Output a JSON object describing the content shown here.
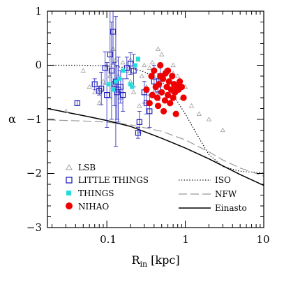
{
  "chart_data": {
    "type": "scatter",
    "xlabel": "R",
    "xlabel_sub": "in",
    "xlabel_unit": " [kpc]",
    "ylabel": "α",
    "x_scale": "log",
    "xlim": [
      0.0175,
      10
    ],
    "ylim": [
      -3,
      1
    ],
    "x_tick_labels": [
      "0.1",
      "1",
      "10"
    ],
    "y_tick_labels": [
      "1",
      "0",
      "−1",
      "−2",
      "−3"
    ],
    "colors": {
      "lsb": "#a0a0a0",
      "little_things": "#2222bb",
      "things": "#22dddd",
      "nihao": "#ee0000",
      "curve": "#000000",
      "nfw": "#999999"
    },
    "legend": [
      {
        "label": "LSB",
        "kind": "lsb"
      },
      {
        "label": "LITTLE THINGS",
        "kind": "little_things"
      },
      {
        "label": "THINGS",
        "kind": "things"
      },
      {
        "label": "NIHAO",
        "kind": "nihao"
      },
      {
        "label": "ISO",
        "kind": "iso"
      },
      {
        "label": "NFW",
        "kind": "nfw"
      },
      {
        "label": "Einasto",
        "kind": "einasto"
      }
    ],
    "series": [
      {
        "name": "LSB",
        "marker": "triangle",
        "points": [
          [
            0.03,
            -0.85
          ],
          [
            0.05,
            -0.1
          ],
          [
            0.06,
            -0.4
          ],
          [
            0.07,
            -0.5
          ],
          [
            0.08,
            -0.7
          ],
          [
            0.09,
            -0.3
          ],
          [
            0.1,
            0.0
          ],
          [
            0.11,
            -0.2
          ],
          [
            0.12,
            -0.4
          ],
          [
            0.13,
            0.1
          ],
          [
            0.14,
            -0.2
          ],
          [
            0.15,
            -0.6
          ],
          [
            0.16,
            0.05
          ],
          [
            0.18,
            -0.1
          ],
          [
            0.2,
            -0.3
          ],
          [
            0.22,
            -0.5
          ],
          [
            0.25,
            0.1
          ],
          [
            0.28,
            -0.2
          ],
          [
            0.3,
            0.0
          ],
          [
            0.32,
            -0.4
          ],
          [
            0.35,
            -0.7
          ],
          [
            0.38,
            0.05
          ],
          [
            0.4,
            -0.2
          ],
          [
            0.45,
            -0.5
          ],
          [
            0.5,
            0.2
          ],
          [
            0.55,
            -0.1
          ],
          [
            0.6,
            -0.35
          ],
          [
            0.65,
            -0.7
          ],
          [
            0.7,
            0.0
          ],
          [
            0.8,
            -0.2
          ],
          [
            0.9,
            -0.6
          ],
          [
            1.0,
            -0.4
          ],
          [
            1.2,
            -0.75
          ],
          [
            1.5,
            -0.9
          ],
          [
            2.0,
            -1.0
          ],
          [
            3.0,
            -1.2
          ],
          [
            0.12,
            0.3
          ],
          [
            0.2,
            0.1
          ],
          [
            0.45,
            0.3
          ],
          [
            0.35,
            -0.05
          ],
          [
            0.7,
            -0.15
          ],
          [
            0.26,
            -0.75
          ]
        ]
      },
      {
        "name": "LITTLE THINGS",
        "marker": "open-square",
        "points": [
          [
            0.042,
            -0.7,
            0.05,
            0.05
          ],
          [
            0.07,
            -0.35,
            0.1,
            0.1
          ],
          [
            0.08,
            -0.47,
            0.08,
            0.08
          ],
          [
            0.085,
            -0.43,
            0.3,
            0.3
          ],
          [
            0.095,
            -0.05,
            0.3,
            0.3
          ],
          [
            0.1,
            -0.55,
            0.6,
            0.6
          ],
          [
            0.11,
            0.2,
            0.8,
            0.8
          ],
          [
            0.115,
            -0.1,
            0.9,
            0.9
          ],
          [
            0.12,
            0.62,
            0.6,
            0.6
          ],
          [
            0.125,
            -0.35,
            0.4,
            0.4
          ],
          [
            0.13,
            -0.3,
            1.2,
            1.2
          ],
          [
            0.135,
            -0.5,
            0.5,
            0.5
          ],
          [
            0.14,
            -0.45,
            0.6,
            0.6
          ],
          [
            0.15,
            -0.4,
            0.3,
            0.3
          ],
          [
            0.16,
            -0.55,
            0.3,
            0.3
          ],
          [
            0.18,
            -0.05,
            0.2,
            0.2
          ],
          [
            0.2,
            0.03,
            0.2,
            0.2
          ],
          [
            0.22,
            -0.1,
            0.3,
            0.3
          ],
          [
            0.25,
            -1.25,
            0.1,
            0.1
          ],
          [
            0.26,
            -1.05,
            0.2,
            0.2
          ],
          [
            0.3,
            -0.5,
            0.2,
            0.2
          ],
          [
            0.32,
            -0.7,
            0.2,
            0.2
          ],
          [
            0.35,
            -0.85,
            0.3,
            0.3
          ],
          [
            0.4,
            -0.3,
            0.3,
            0.3
          ],
          [
            0.45,
            -0.45,
            0.2,
            0.2
          ],
          [
            0.48,
            -0.2,
            0.2,
            0.2
          ]
        ]
      },
      {
        "name": "THINGS",
        "marker": "filled-square",
        "points": [
          [
            0.105,
            -0.35
          ],
          [
            0.13,
            -0.3
          ],
          [
            0.145,
            -0.25
          ],
          [
            0.16,
            -0.1
          ],
          [
            0.2,
            -0.35
          ],
          [
            0.21,
            -0.4
          ],
          [
            0.23,
            0.0
          ],
          [
            0.25,
            0.12
          ],
          [
            0.12,
            -0.45
          ]
        ]
      },
      {
        "name": "NIHAO",
        "marker": "filled-circle",
        "points": [
          [
            0.32,
            -0.45
          ],
          [
            0.35,
            -0.7
          ],
          [
            0.37,
            -0.2
          ],
          [
            0.4,
            -0.1
          ],
          [
            0.42,
            -0.4
          ],
          [
            0.44,
            -0.6
          ],
          [
            0.46,
            -0.35
          ],
          [
            0.48,
            0.0
          ],
          [
            0.5,
            -0.5
          ],
          [
            0.52,
            -0.25
          ],
          [
            0.55,
            -0.65
          ],
          [
            0.56,
            -0.15
          ],
          [
            0.58,
            -0.4
          ],
          [
            0.6,
            -0.55
          ],
          [
            0.62,
            -0.3
          ],
          [
            0.64,
            -0.7
          ],
          [
            0.66,
            -0.45
          ],
          [
            0.68,
            -0.2
          ],
          [
            0.7,
            -0.6
          ],
          [
            0.72,
            -0.35
          ],
          [
            0.74,
            -0.5
          ],
          [
            0.76,
            -0.9
          ],
          [
            0.78,
            -0.4
          ],
          [
            0.82,
            -0.45
          ],
          [
            0.85,
            -0.3
          ],
          [
            0.9,
            -0.4
          ],
          [
            0.95,
            -0.6
          ],
          [
            0.45,
            -0.75
          ],
          [
            0.38,
            -0.55
          ],
          [
            0.53,
            -0.85
          ],
          [
            0.6,
            -0.1
          ],
          [
            0.48,
            -0.2
          ]
        ]
      }
    ],
    "curves": [
      {
        "name": "ISO",
        "style": "dotted",
        "points": [
          [
            0.0175,
            0.0
          ],
          [
            0.05,
            0.0
          ],
          [
            0.1,
            -0.01
          ],
          [
            0.2,
            -0.05
          ],
          [
            0.3,
            -0.12
          ],
          [
            0.5,
            -0.3
          ],
          [
            0.7,
            -0.55
          ],
          [
            1.0,
            -0.9
          ],
          [
            1.5,
            -1.35
          ],
          [
            2.0,
            -1.65
          ],
          [
            3.0,
            -1.87
          ],
          [
            5.0,
            -1.96
          ],
          [
            10.0,
            -1.99
          ]
        ]
      },
      {
        "name": "NFW",
        "style": "dashed",
        "points": [
          [
            0.0175,
            -1.01
          ],
          [
            0.05,
            -1.03
          ],
          [
            0.1,
            -1.05
          ],
          [
            0.2,
            -1.1
          ],
          [
            0.5,
            -1.22
          ],
          [
            1.0,
            -1.38
          ],
          [
            2.0,
            -1.6
          ],
          [
            3.0,
            -1.75
          ],
          [
            5.0,
            -1.9
          ],
          [
            7.0,
            -1.97
          ],
          [
            10.0,
            -2.05
          ]
        ]
      },
      {
        "name": "Einasto",
        "style": "solid",
        "points": [
          [
            0.0175,
            -0.8
          ],
          [
            0.05,
            -0.93
          ],
          [
            0.1,
            -1.02
          ],
          [
            0.2,
            -1.13
          ],
          [
            0.5,
            -1.35
          ],
          [
            1.0,
            -1.53
          ],
          [
            2.0,
            -1.73
          ],
          [
            5.0,
            -2.02
          ],
          [
            10.0,
            -2.22
          ]
        ]
      }
    ]
  }
}
